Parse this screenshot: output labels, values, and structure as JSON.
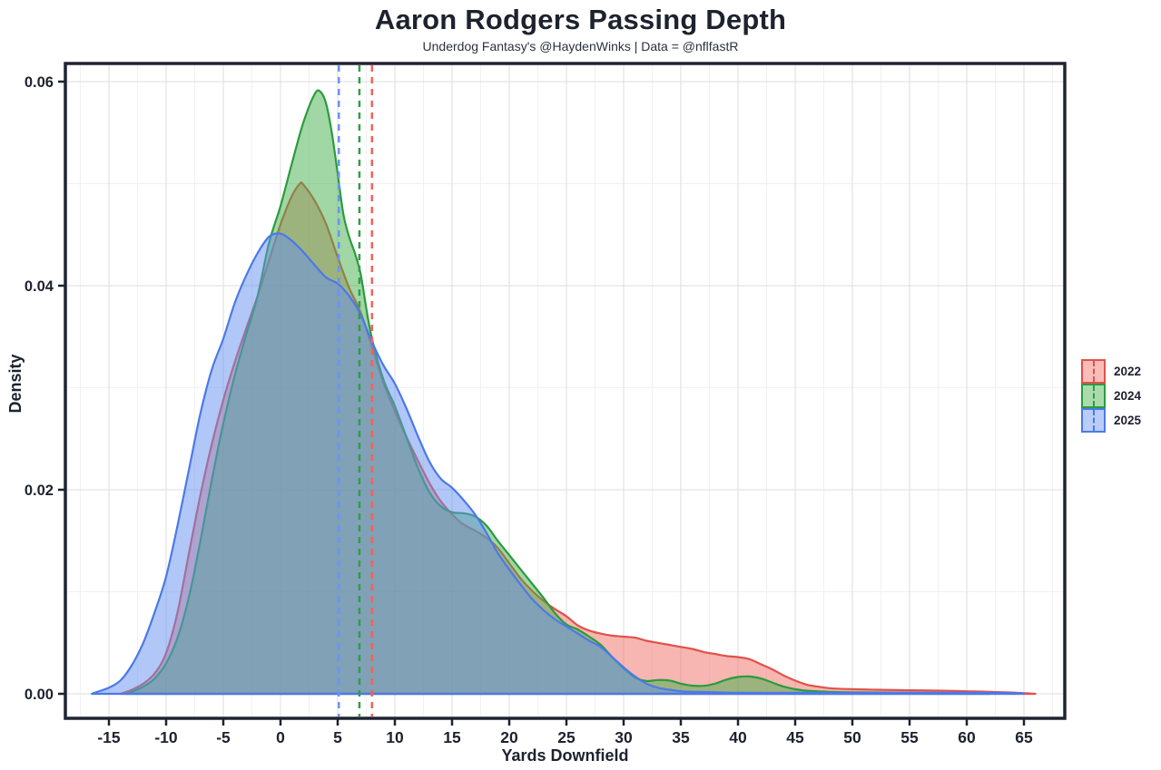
{
  "page": {
    "title": "Aaron Rodgers Passing Depth",
    "subtitle": "Underdog Fantasy's @HaydenWinks | Data = @nflfastR"
  },
  "chart_data": {
    "type": "area",
    "subtype": "density",
    "title": "Aaron Rodgers Passing Depth",
    "subtitle": "Underdog Fantasy's @HaydenWinks | Data = @nflfastR",
    "xlabel": "Yards Downfield",
    "ylabel": "Density",
    "xlim": [
      -18.8,
      68.6
    ],
    "ylim": [
      0,
      0.0618
    ],
    "grid": {
      "on": true,
      "major_color": "#e3e3e3",
      "minor_color": "#f1f1f1"
    },
    "panel_border_color": "#1f2430",
    "text_color": "#1d222e",
    "legend_position": "right",
    "x_ticks": {
      "values": [
        -15,
        -10,
        -5,
        0,
        5,
        10,
        15,
        20,
        25,
        30,
        35,
        40,
        45,
        50,
        55,
        60,
        65
      ],
      "labels": [
        "-15",
        "-10",
        "-5",
        "0",
        "5",
        "10",
        "15",
        "20",
        "25",
        "30",
        "35",
        "40",
        "45",
        "50",
        "55",
        "60",
        "65"
      ]
    },
    "y_ticks": {
      "values": [
        0,
        0.02,
        0.04,
        0.06
      ],
      "labels": [
        "0.00",
        "0.02",
        "0.04",
        "0.06"
      ]
    },
    "x_minor": [
      -17.5,
      -12.5,
      -7.5,
      -2.5,
      2.5,
      7.5,
      12.5,
      17.5,
      22.5,
      27.5,
      32.5,
      37.5,
      42.5,
      47.5,
      52.5,
      57.5,
      62.5,
      67.5
    ],
    "y_minor": [
      0.01,
      0.03,
      0.05
    ],
    "series": [
      {
        "name": "2022",
        "color": "#e0514a",
        "fill": "#ef6d64",
        "fill_opacity": 0.5,
        "mean_x": 8.0,
        "mean_color": "#f2625c",
        "points": [
          [
            -14,
            0
          ],
          [
            -13,
            0.0004
          ],
          [
            -12,
            0.001
          ],
          [
            -11,
            0.002
          ],
          [
            -10,
            0.004
          ],
          [
            -9,
            0.008
          ],
          [
            -8,
            0.0138
          ],
          [
            -7,
            0.0195
          ],
          [
            -6,
            0.0245
          ],
          [
            -5,
            0.0288
          ],
          [
            -4,
            0.0325
          ],
          [
            -3,
            0.0358
          ],
          [
            -2,
            0.039
          ],
          [
            -1,
            0.0425
          ],
          [
            0,
            0.046
          ],
          [
            1,
            0.0488
          ],
          [
            1.7,
            0.05
          ],
          [
            2,
            0.0499
          ],
          [
            3,
            0.0483
          ],
          [
            4,
            0.046
          ],
          [
            5,
            0.0428
          ],
          [
            6,
            0.0398
          ],
          [
            7,
            0.0374
          ],
          [
            8,
            0.034
          ],
          [
            9,
            0.0305
          ],
          [
            10,
            0.0277
          ],
          [
            11,
            0.0252
          ],
          [
            12,
            0.0229
          ],
          [
            13,
            0.0207
          ],
          [
            14,
            0.0189
          ],
          [
            15,
            0.0176
          ],
          [
            16,
            0.0166
          ],
          [
            17,
            0.016
          ],
          [
            18,
            0.0153
          ],
          [
            19,
            0.0143
          ],
          [
            20,
            0.0128
          ],
          [
            21,
            0.0113
          ],
          [
            22,
            0.0101
          ],
          [
            23,
            0.0091
          ],
          [
            24,
            0.0083
          ],
          [
            25,
            0.0076
          ],
          [
            26,
            0.0067
          ],
          [
            27,
            0.0062
          ],
          [
            28,
            0.0059
          ],
          [
            29,
            0.0057
          ],
          [
            30,
            0.0056
          ],
          [
            31,
            0.0055
          ],
          [
            32,
            0.0052
          ],
          [
            33,
            0.005
          ],
          [
            34,
            0.0048
          ],
          [
            35,
            0.0046
          ],
          [
            36,
            0.0044
          ],
          [
            37,
            0.0041
          ],
          [
            38,
            0.0039
          ],
          [
            39,
            0.0037
          ],
          [
            40,
            0.0036
          ],
          [
            41,
            0.0034
          ],
          [
            42,
            0.0029
          ],
          [
            43,
            0.0024
          ],
          [
            44,
            0.0018
          ],
          [
            45,
            0.0013
          ],
          [
            46,
            0.0009
          ],
          [
            47,
            0.0007
          ],
          [
            48,
            0.00055
          ],
          [
            50,
            0.00045
          ],
          [
            52,
            0.0004
          ],
          [
            55,
            0.00035
          ],
          [
            58,
            0.0003
          ],
          [
            60,
            0.00025
          ],
          [
            62,
            0.0002
          ],
          [
            64,
            0.00012
          ],
          [
            66,
            0
          ]
        ]
      },
      {
        "name": "2024",
        "color": "#2a9c3f",
        "fill": "#44b04a",
        "fill_opacity": 0.5,
        "mean_x": 6.9,
        "mean_color": "#2f9e47",
        "points": [
          [
            -13.5,
            0
          ],
          [
            -13,
            0.0002
          ],
          [
            -12,
            0.0007
          ],
          [
            -11,
            0.0015
          ],
          [
            -10,
            0.003
          ],
          [
            -9,
            0.0055
          ],
          [
            -8,
            0.0095
          ],
          [
            -7,
            0.015
          ],
          [
            -6,
            0.021
          ],
          [
            -5,
            0.0265
          ],
          [
            -4,
            0.0312
          ],
          [
            -3,
            0.0352
          ],
          [
            -2,
            0.039
          ],
          [
            -1,
            0.0442
          ],
          [
            0,
            0.0478
          ],
          [
            1,
            0.052
          ],
          [
            2,
            0.056
          ],
          [
            3,
            0.0588
          ],
          [
            3.5,
            0.059
          ],
          [
            4,
            0.0578
          ],
          [
            4.5,
            0.0549
          ],
          [
            5,
            0.051
          ],
          [
            5.5,
            0.047
          ],
          [
            6,
            0.0448
          ],
          [
            6.5,
            0.0432
          ],
          [
            7,
            0.0412
          ],
          [
            7.5,
            0.0378
          ],
          [
            8,
            0.0348
          ],
          [
            9,
            0.0308
          ],
          [
            10,
            0.0282
          ],
          [
            11,
            0.0252
          ],
          [
            12,
            0.0222
          ],
          [
            13,
            0.0198
          ],
          [
            14,
            0.0184
          ],
          [
            15,
            0.0178
          ],
          [
            16,
            0.0177
          ],
          [
            17,
            0.0174
          ],
          [
            18,
            0.0165
          ],
          [
            19,
            0.015
          ],
          [
            20,
            0.0136
          ],
          [
            21,
            0.0122
          ],
          [
            22,
            0.0108
          ],
          [
            23,
            0.0094
          ],
          [
            24,
            0.0079
          ],
          [
            25,
            0.0068
          ],
          [
            26,
            0.0063
          ],
          [
            27,
            0.0056
          ],
          [
            28,
            0.0048
          ],
          [
            29,
            0.0036
          ],
          [
            30,
            0.0025
          ],
          [
            31,
            0.0016
          ],
          [
            32,
            0.00125
          ],
          [
            33,
            0.00135
          ],
          [
            34,
            0.0013
          ],
          [
            35,
            0.001
          ],
          [
            36,
            0.0008
          ],
          [
            37,
            0.00078
          ],
          [
            38,
            0.001
          ],
          [
            39,
            0.0014
          ],
          [
            40,
            0.00165
          ],
          [
            41,
            0.0017
          ],
          [
            42,
            0.0015
          ],
          [
            43,
            0.0011
          ],
          [
            44,
            0.0007
          ],
          [
            45,
            0.00045
          ],
          [
            46,
            0.0003
          ],
          [
            48,
            0.0002
          ],
          [
            50,
            0.00015
          ],
          [
            55,
            0.0001
          ],
          [
            58,
            8e-05
          ],
          [
            60,
            5e-05
          ],
          [
            62,
            0
          ]
        ]
      },
      {
        "name": "2025",
        "color": "#4b79ea",
        "fill": "#6490f0",
        "fill_opacity": 0.5,
        "mean_x": 5.1,
        "mean_color": "#6d93f2",
        "points": [
          [
            -16.5,
            0
          ],
          [
            -16,
            0.0002
          ],
          [
            -15,
            0.0006
          ],
          [
            -14,
            0.0013
          ],
          [
            -13,
            0.0028
          ],
          [
            -12,
            0.005
          ],
          [
            -11,
            0.008
          ],
          [
            -10,
            0.0115
          ],
          [
            -9,
            0.0165
          ],
          [
            -8,
            0.022
          ],
          [
            -7,
            0.0275
          ],
          [
            -6,
            0.0318
          ],
          [
            -5,
            0.0348
          ],
          [
            -4,
            0.0383
          ],
          [
            -3,
            0.041
          ],
          [
            -2,
            0.0432
          ],
          [
            -1,
            0.0448
          ],
          [
            0,
            0.0451
          ],
          [
            1,
            0.0444
          ],
          [
            2,
            0.0433
          ],
          [
            3,
            0.042
          ],
          [
            4,
            0.0408
          ],
          [
            5,
            0.0402
          ],
          [
            6,
            0.039
          ],
          [
            7,
            0.0372
          ],
          [
            8,
            0.0345
          ],
          [
            9,
            0.0322
          ],
          [
            10,
            0.0304
          ],
          [
            11,
            0.028
          ],
          [
            12,
            0.0253
          ],
          [
            13,
            0.0228
          ],
          [
            14,
            0.0211
          ],
          [
            15,
            0.0202
          ],
          [
            16,
            0.019
          ],
          [
            17,
            0.0176
          ],
          [
            18,
            0.0158
          ],
          [
            19,
            0.0138
          ],
          [
            20,
            0.0122
          ],
          [
            21,
            0.0107
          ],
          [
            22,
            0.0093
          ],
          [
            23,
            0.0082
          ],
          [
            24,
            0.0073
          ],
          [
            25,
            0.0066
          ],
          [
            26,
            0.0059
          ],
          [
            27,
            0.0052
          ],
          [
            28,
            0.0046
          ],
          [
            29,
            0.0036
          ],
          [
            30,
            0.0026
          ],
          [
            31,
            0.0017
          ],
          [
            32,
            0.001
          ],
          [
            33,
            0.0006
          ],
          [
            34,
            0.0004
          ],
          [
            35,
            0.00025
          ],
          [
            36,
            0.0002
          ],
          [
            38,
            0.00015
          ],
          [
            40,
            0.0001
          ],
          [
            45,
            0.0001
          ],
          [
            50,
            0.0001
          ],
          [
            55,
            0.0001
          ],
          [
            60,
            0.0001
          ],
          [
            64,
            8e-05
          ],
          [
            65,
            0
          ]
        ]
      }
    ]
  }
}
